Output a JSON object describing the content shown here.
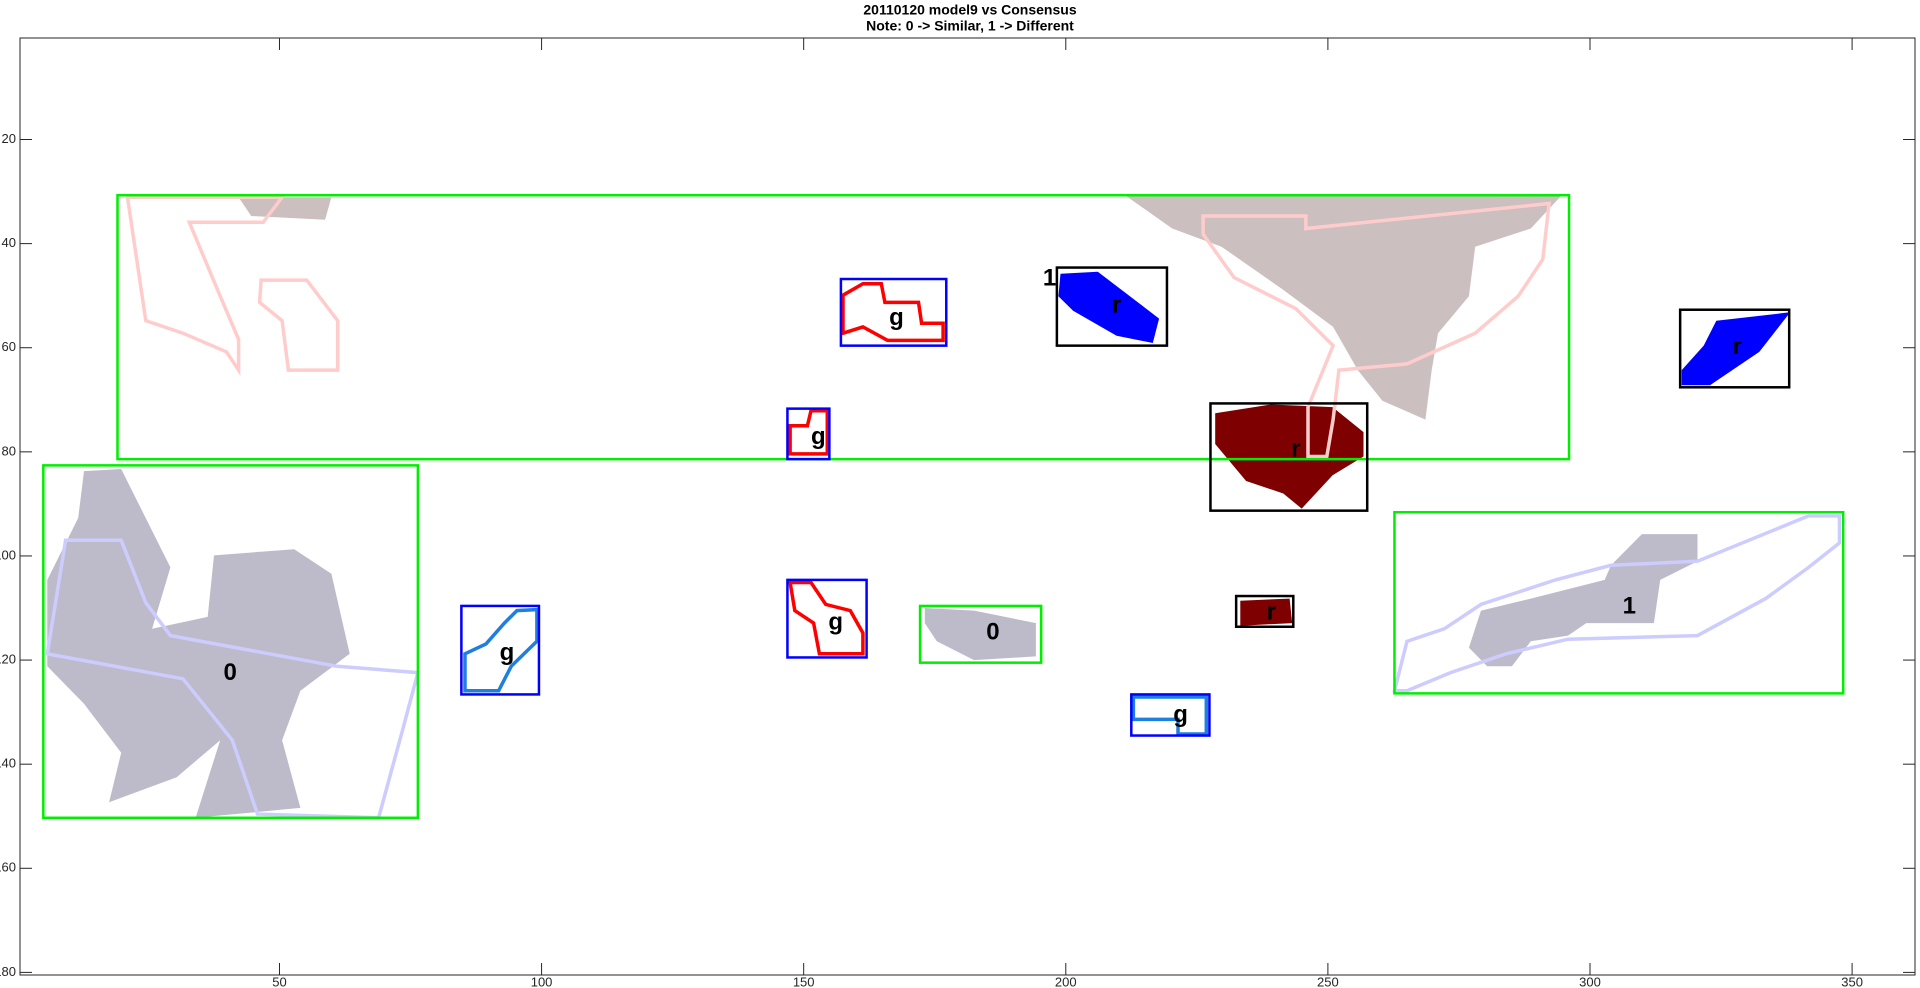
{
  "chart_data": {
    "type": "region-map",
    "title": "20110120 model9 vs Consensus",
    "subtitle": "Note: 0 -> Similar, 1 -> Different",
    "xlim": [
      0.5,
      362
    ],
    "ylim": [
      0.5,
      180.5
    ],
    "y_reversed": true,
    "xticks": [
      50,
      100,
      150,
      200,
      250,
      300,
      350
    ],
    "yticks": [
      20,
      40,
      60,
      80,
      100,
      120,
      140,
      160,
      180
    ],
    "regions": [
      {
        "fill": "#cbbfc0",
        "stroke": "none",
        "points": [
          [
            211.3,
            30.7
          ],
          [
            294.6,
            30.7
          ],
          [
            288.7,
            37.1
          ],
          [
            278.1,
            40.6
          ],
          [
            276.9,
            50.1
          ],
          [
            271,
            57.2
          ],
          [
            269.8,
            64.3
          ],
          [
            268.6,
            73.8
          ],
          [
            260.4,
            70.2
          ],
          [
            255.7,
            64.3
          ],
          [
            251,
            56
          ],
          [
            241.5,
            48.9
          ],
          [
            229.7,
            40.6
          ],
          [
            220.3,
            37.1
          ]
        ]
      },
      {
        "fill": "#cbbfc0",
        "stroke": "none",
        "points": [
          [
            42.2,
            31.1
          ],
          [
            59.9,
            31.1
          ],
          [
            58.7,
            35.4
          ],
          [
            44.6,
            34.7
          ]
        ]
      },
      {
        "fill": "#bdbbc9",
        "stroke": "none",
        "points": [
          [
            12.7,
            83.7
          ],
          [
            19.8,
            83.3
          ],
          [
            29.2,
            102.2
          ],
          [
            25.7,
            114
          ],
          [
            36.3,
            111.7
          ],
          [
            37.5,
            99.9
          ],
          [
            52.8,
            98.7
          ],
          [
            59.9,
            103.4
          ],
          [
            63.4,
            118.8
          ],
          [
            54,
            125.9
          ],
          [
            50.5,
            135.4
          ],
          [
            54,
            148.4
          ],
          [
            34,
            150.3
          ],
          [
            38.7,
            135.4
          ],
          [
            30.4,
            142.5
          ],
          [
            17.5,
            147.3
          ],
          [
            19.8,
            137.8
          ],
          [
            12.7,
            128.4
          ],
          [
            5.7,
            121.2
          ],
          [
            5.7,
            104.6
          ],
          [
            11.6,
            92.7
          ]
        ]
      },
      {
        "fill": "#bdbbc9",
        "stroke": "none",
        "points": [
          [
            173.1,
            110
          ],
          [
            182.5,
            110.5
          ],
          [
            194.3,
            112.9
          ],
          [
            194.3,
            119.3
          ],
          [
            182.5,
            120
          ],
          [
            175.4,
            116.4
          ],
          [
            173.1,
            112.9
          ]
        ]
      },
      {
        "fill": "#bdbbc9",
        "stroke": "none",
        "points": [
          [
            309.9,
            95.8
          ],
          [
            320.5,
            95.8
          ],
          [
            320.5,
            101
          ],
          [
            313.4,
            104.6
          ],
          [
            312.2,
            112.9
          ],
          [
            299.3,
            112.9
          ],
          [
            295.8,
            115.3
          ],
          [
            288.7,
            116.4
          ],
          [
            285.1,
            121.2
          ],
          [
            280.4,
            121.2
          ],
          [
            276.9,
            117.6
          ],
          [
            279.2,
            110.5
          ],
          [
            288.7,
            108.2
          ],
          [
            302.8,
            104.6
          ],
          [
            304,
            101.8
          ]
        ]
      },
      {
        "fill": "#0000ff",
        "stroke": "none",
        "points": [
          [
            199,
            45.8
          ],
          [
            206.1,
            45.4
          ],
          [
            217.8,
            54.4
          ],
          [
            216.6,
            59.1
          ],
          [
            209.7,
            57.7
          ],
          [
            201.4,
            52.9
          ],
          [
            198.6,
            50.1
          ]
        ]
      },
      {
        "fill": "#0000ff",
        "stroke": "none",
        "points": [
          [
            338.2,
            53.2
          ],
          [
            332.3,
            60.8
          ],
          [
            322.9,
            67.2
          ],
          [
            317.5,
            67.2
          ],
          [
            317.5,
            64.3
          ],
          [
            321.7,
            59.6
          ],
          [
            324.1,
            54.8
          ]
        ]
      },
      {
        "fill": "#7f0000",
        "stroke": "none",
        "points": [
          [
            228.5,
            72.6
          ],
          [
            239.1,
            70.9
          ],
          [
            250.9,
            71.4
          ],
          [
            256.8,
            76.2
          ],
          [
            256.8,
            80.9
          ],
          [
            250.9,
            84.5
          ],
          [
            245,
            90.9
          ],
          [
            241.5,
            88
          ],
          [
            234.4,
            85.6
          ],
          [
            228.5,
            78.5
          ]
        ]
      },
      {
        "fill": "#7f0000",
        "stroke": "none",
        "points": [
          [
            233.3,
            108.6
          ],
          [
            242.7,
            108.2
          ],
          [
            243.2,
            112.9
          ],
          [
            233.3,
            113.4
          ]
        ]
      },
      {
        "fill": "none",
        "stroke": "#ffcccc",
        "points": [
          [
            21,
            31.1
          ],
          [
            50.5,
            31.1
          ],
          [
            46.9,
            35.9
          ],
          [
            32.8,
            35.9
          ],
          [
            38.7,
            50.1
          ],
          [
            42.2,
            58.4
          ],
          [
            42.2,
            64.3
          ],
          [
            39.9,
            60.8
          ],
          [
            31.6,
            57.2
          ],
          [
            24.5,
            54.8
          ]
        ]
      },
      {
        "fill": "none",
        "stroke": "#ffcccc",
        "points": [
          [
            46.5,
            47
          ],
          [
            55.2,
            47
          ],
          [
            61.1,
            54.8
          ],
          [
            61.1,
            64.3
          ],
          [
            51.7,
            64.3
          ],
          [
            50.5,
            54.8
          ],
          [
            46.2,
            51.3
          ]
        ]
      },
      {
        "fill": "none",
        "stroke": "#ffcccc",
        "points": [
          [
            226.2,
            34.7
          ],
          [
            245.8,
            34.7
          ],
          [
            245.8,
            37.1
          ],
          [
            292.2,
            32.3
          ],
          [
            291,
            43
          ],
          [
            286.3,
            50.1
          ],
          [
            278.1,
            57.2
          ],
          [
            265.1,
            63.1
          ],
          [
            252.1,
            64.3
          ],
          [
            251,
            73.8
          ],
          [
            249.8,
            80.9
          ],
          [
            246.2,
            80.9
          ],
          [
            246.2,
            71.4
          ],
          [
            251,
            59.6
          ],
          [
            243.9,
            52.5
          ],
          [
            232.1,
            46.5
          ],
          [
            226.2,
            38.2
          ]
        ]
      },
      {
        "fill": "none",
        "stroke": "#ccccff",
        "points": [
          [
            9.2,
            97
          ],
          [
            19.8,
            97
          ],
          [
            24.5,
            109
          ],
          [
            29.2,
            115.3
          ],
          [
            61,
            121.2
          ],
          [
            76.4,
            122.4
          ],
          [
            73.6,
            133
          ],
          [
            68.9,
            150.3
          ],
          [
            45.8,
            149.6
          ],
          [
            41,
            135.4
          ],
          [
            31.6,
            123.6
          ],
          [
            5.7,
            118.8
          ]
        ]
      },
      {
        "fill": "none",
        "stroke": "#ccccff",
        "points": [
          [
            262.7,
            125.9
          ],
          [
            265.1,
            116.4
          ],
          [
            272.2,
            114
          ],
          [
            279.2,
            109.3
          ],
          [
            293.4,
            104.6
          ],
          [
            304,
            101.8
          ],
          [
            320.5,
            101
          ],
          [
            341.7,
            92.3
          ],
          [
            347.6,
            92.3
          ],
          [
            347.6,
            97.5
          ],
          [
            341.7,
            102.2
          ],
          [
            333.5,
            108.2
          ],
          [
            320.5,
            115.3
          ],
          [
            295.8,
            116
          ],
          [
            284,
            118.8
          ],
          [
            273.4,
            122.4
          ],
          [
            265.1,
            125.9
          ]
        ]
      },
      {
        "fill": "none",
        "stroke": "#ff0000",
        "points": [
          [
            157.5,
            49.9
          ],
          [
            161.3,
            47.7
          ],
          [
            164.8,
            47.7
          ],
          [
            165.5,
            51.3
          ],
          [
            171.9,
            51.3
          ],
          [
            172.5,
            55.3
          ],
          [
            176.6,
            55.3
          ],
          [
            176.6,
            58.6
          ],
          [
            166,
            58.6
          ],
          [
            161.3,
            56
          ],
          [
            157.5,
            57.2
          ]
        ]
      },
      {
        "fill": "none",
        "stroke": "#ff0000",
        "points": [
          [
            147.4,
            75
          ],
          [
            150.7,
            75
          ],
          [
            151.4,
            72.1
          ],
          [
            154.5,
            72.1
          ],
          [
            154.5,
            80.4
          ],
          [
            147.4,
            80.4
          ]
        ]
      },
      {
        "fill": "none",
        "stroke": "#ff0000",
        "points": [
          [
            147.4,
            105.1
          ],
          [
            151.4,
            105.1
          ],
          [
            154.2,
            109.3
          ],
          [
            158.9,
            110.5
          ],
          [
            161.3,
            114.8
          ],
          [
            161.3,
            118.8
          ],
          [
            153,
            118.8
          ],
          [
            151.9,
            112.9
          ],
          [
            148.3,
            110.5
          ]
        ]
      },
      {
        "fill": "none",
        "stroke": "#1e7fe0",
        "points": [
          [
            85.4,
            118.8
          ],
          [
            89.4,
            116.9
          ],
          [
            92.9,
            112.9
          ],
          [
            95.3,
            110.5
          ],
          [
            99.1,
            110.3
          ],
          [
            99.1,
            116.4
          ],
          [
            94.2,
            121.2
          ],
          [
            91.8,
            125.9
          ],
          [
            85.4,
            125.9
          ]
        ]
      },
      {
        "fill": "none",
        "stroke": "#1e7fe0",
        "points": [
          [
            212.9,
            127.1
          ],
          [
            226.8,
            127.1
          ],
          [
            226.8,
            134.2
          ],
          [
            221.4,
            134.2
          ],
          [
            221.4,
            131.4
          ],
          [
            212.9,
            131.4
          ]
        ]
      }
    ],
    "boxes": [
      {
        "color": "#00ee00",
        "x": [
          19.1,
          296.0
        ],
        "y": [
          30.7,
          81.4
        ]
      },
      {
        "color": "#00ee00",
        "x": [
          4.95,
          76.4
        ],
        "y": [
          82.6,
          150.3
        ]
      },
      {
        "color": "#00ee00",
        "x": [
          172.2,
          195.3
        ],
        "y": [
          109.6,
          120.5
        ]
      },
      {
        "color": "#00ee00",
        "x": [
          262.7,
          348.3
        ],
        "y": [
          91.6,
          126.4
        ]
      },
      {
        "color": "#0000ff",
        "x": [
          84.7,
          99.5
        ],
        "y": [
          109.6,
          126.6
        ]
      },
      {
        "color": "#0000ff",
        "x": [
          157.1,
          177.2
        ],
        "y": [
          46.8,
          59.6
        ]
      },
      {
        "color": "#0000ff",
        "x": [
          146.9,
          154.9
        ],
        "y": [
          71.7,
          81.4
        ]
      },
      {
        "color": "#0000ff",
        "x": [
          146.9,
          162.0
        ],
        "y": [
          104.6,
          119.5
        ]
      },
      {
        "color": "#0000ff",
        "x": [
          212.5,
          227.4
        ],
        "y": [
          126.6,
          134.5
        ]
      },
      {
        "color": "#000000",
        "x": [
          198.3,
          219.3
        ],
        "y": [
          44.6,
          59.6
        ]
      },
      {
        "color": "#000000",
        "x": [
          227.6,
          257.5
        ],
        "y": [
          70.7,
          91.3
        ]
      },
      {
        "color": "#000000",
        "x": [
          232.5,
          243.4
        ],
        "y": [
          107.7,
          113.6
        ]
      },
      {
        "color": "#000000",
        "x": [
          317.2,
          338.0
        ],
        "y": [
          52.7,
          67.6
        ]
      }
    ],
    "labels": [
      {
        "text": "0",
        "x": 40.6,
        "y": 122.6
      },
      {
        "text": "0",
        "x": 186.1,
        "y": 114.8
      },
      {
        "text": "1",
        "x": 307.5,
        "y": 109.8
      },
      {
        "text": "1",
        "x": 196.9,
        "y": 46.8
      },
      {
        "text": "g",
        "x": 93.4,
        "y": 118.8
      },
      {
        "text": "g",
        "x": 167.7,
        "y": 54.4
      },
      {
        "text": "g",
        "x": 152.8,
        "y": 77.3
      },
      {
        "text": "g",
        "x": 156.1,
        "y": 112.9
      },
      {
        "text": "g",
        "x": 221.9,
        "y": 130.7
      },
      {
        "text": "r",
        "x": 209.7,
        "y": 52.0
      },
      {
        "text": "r",
        "x": 243.9,
        "y": 79.7
      },
      {
        "text": "r",
        "x": 239.2,
        "y": 111.0
      },
      {
        "text": "r",
        "x": 328.1,
        "y": 60.0
      }
    ]
  }
}
